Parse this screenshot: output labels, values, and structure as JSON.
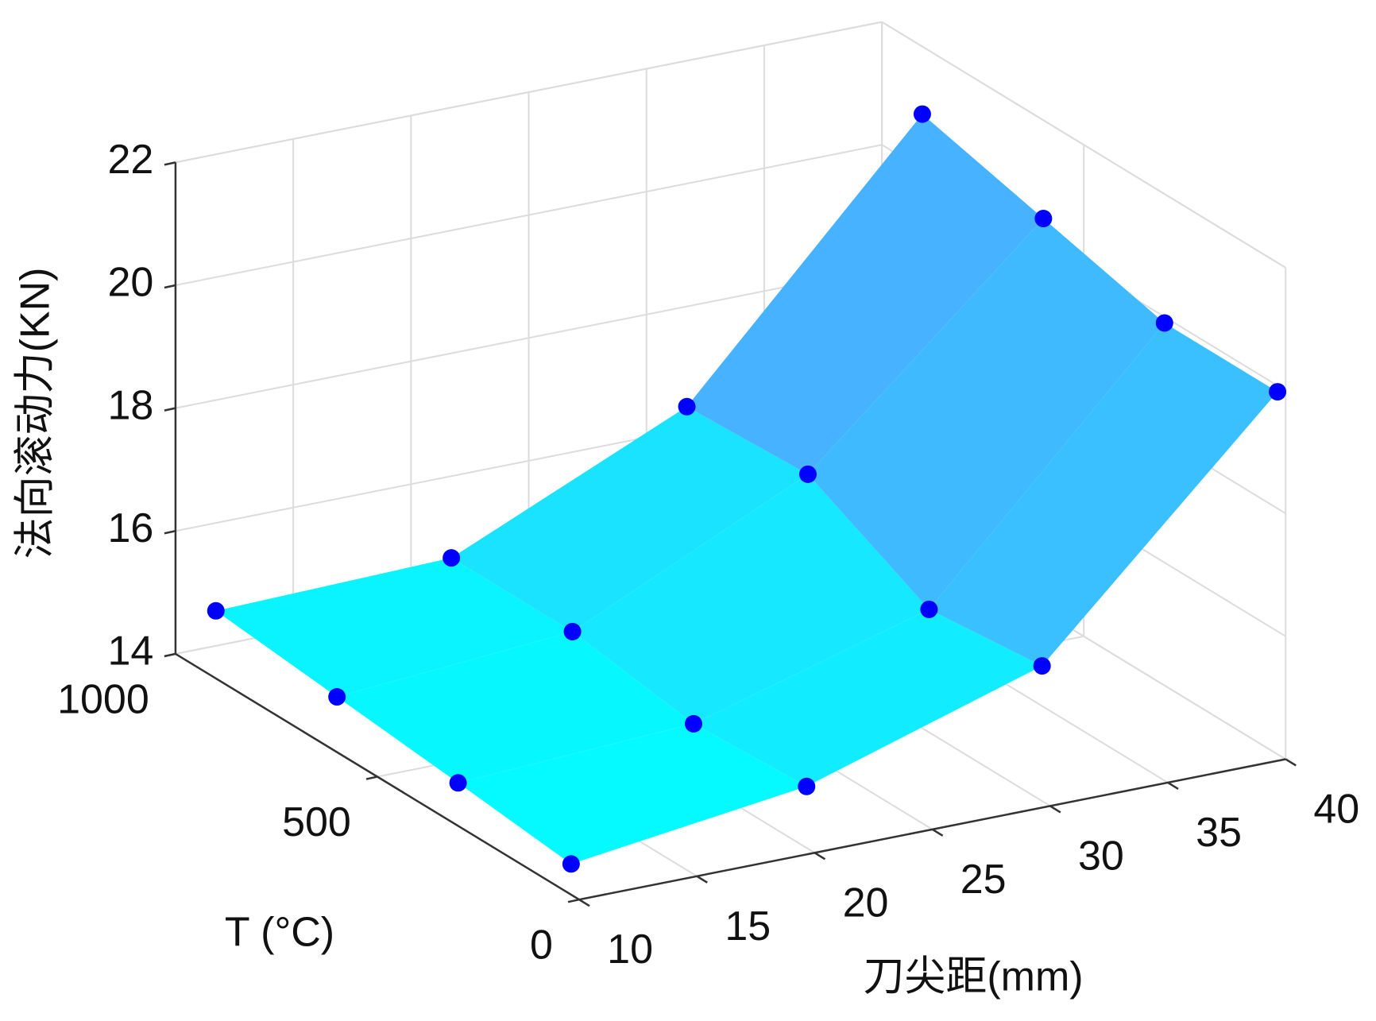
{
  "chart_data": {
    "type": "surface",
    "xlabel": "刀尖距(mm)",
    "ylabel": "T (°C)",
    "zlabel": "法向滚动力(KN)",
    "x": [
      10,
      20,
      30,
      40
    ],
    "y": [
      20,
      300,
      600,
      900
    ],
    "z": [
      [
        14.5,
        15.0,
        16.2,
        19.9
      ],
      [
        14.7,
        14.9,
        16.0,
        19.9
      ],
      [
        14.9,
        15.2,
        17.0,
        20.4
      ],
      [
        15.1,
        15.2,
        16.9,
        20.9
      ]
    ],
    "xlim": [
      10,
      40
    ],
    "xticks": [
      10,
      15,
      20,
      25,
      30,
      35,
      40
    ],
    "ylim": [
      0,
      1000
    ],
    "yticks": [
      0,
      500,
      1000
    ],
    "zlim": [
      14,
      22
    ],
    "zticks": [
      14,
      16,
      18,
      20,
      22
    ],
    "grid": true,
    "marker_color": "#0000ff",
    "colormap": [
      "#00ffff",
      "#6a8cff"
    ]
  }
}
